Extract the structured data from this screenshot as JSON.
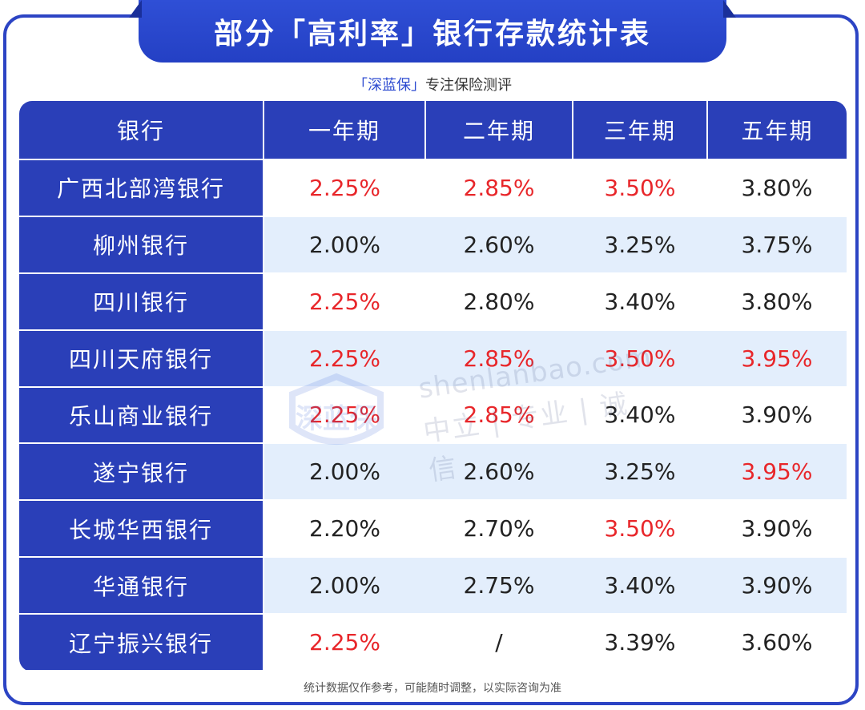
{
  "title": "部分「高利率」银行存款统计表",
  "subtitle": {
    "brand": "「深蓝保」",
    "tagline": "专注保险测评"
  },
  "table": {
    "headers": [
      "银行",
      "一年期",
      "二年期",
      "三年期",
      "五年期"
    ],
    "highlight_color": "#e8262a",
    "rows": [
      {
        "bank": "广西北部湾银行",
        "rates": [
          "2.25%",
          "2.85%",
          "3.50%",
          "3.80%"
        ],
        "highlight": [
          true,
          true,
          true,
          false
        ]
      },
      {
        "bank": "柳州银行",
        "rates": [
          "2.00%",
          "2.60%",
          "3.25%",
          "3.75%"
        ],
        "highlight": [
          false,
          false,
          false,
          false
        ]
      },
      {
        "bank": "四川银行",
        "rates": [
          "2.25%",
          "2.80%",
          "3.40%",
          "3.80%"
        ],
        "highlight": [
          true,
          false,
          false,
          false
        ]
      },
      {
        "bank": "四川天府银行",
        "rates": [
          "2.25%",
          "2.85%",
          "3.50%",
          "3.95%"
        ],
        "highlight": [
          true,
          true,
          true,
          true
        ]
      },
      {
        "bank": "乐山商业银行",
        "rates": [
          "2.25%",
          "2.85%",
          "3.40%",
          "3.90%"
        ],
        "highlight": [
          true,
          true,
          false,
          false
        ]
      },
      {
        "bank": "遂宁银行",
        "rates": [
          "2.00%",
          "2.60%",
          "3.25%",
          "3.95%"
        ],
        "highlight": [
          false,
          false,
          false,
          true
        ]
      },
      {
        "bank": "长城华西银行",
        "rates": [
          "2.20%",
          "2.70%",
          "3.50%",
          "3.90%"
        ],
        "highlight": [
          false,
          false,
          true,
          false
        ]
      },
      {
        "bank": "华通银行",
        "rates": [
          "2.00%",
          "2.75%",
          "3.40%",
          "3.90%"
        ],
        "highlight": [
          false,
          false,
          false,
          false
        ]
      },
      {
        "bank": "辽宁振兴银行",
        "rates": [
          "2.25%",
          "/",
          "3.39%",
          "3.60%"
        ],
        "highlight": [
          true,
          false,
          false,
          false
        ]
      }
    ]
  },
  "watermark": {
    "logo_text": "深蓝保",
    "url": "shenlanbao.com",
    "slogan": "中立 | 专业 | 诚信"
  },
  "footnote": "统计数据仅作参考，可能随时调整，以实际咨询为准"
}
